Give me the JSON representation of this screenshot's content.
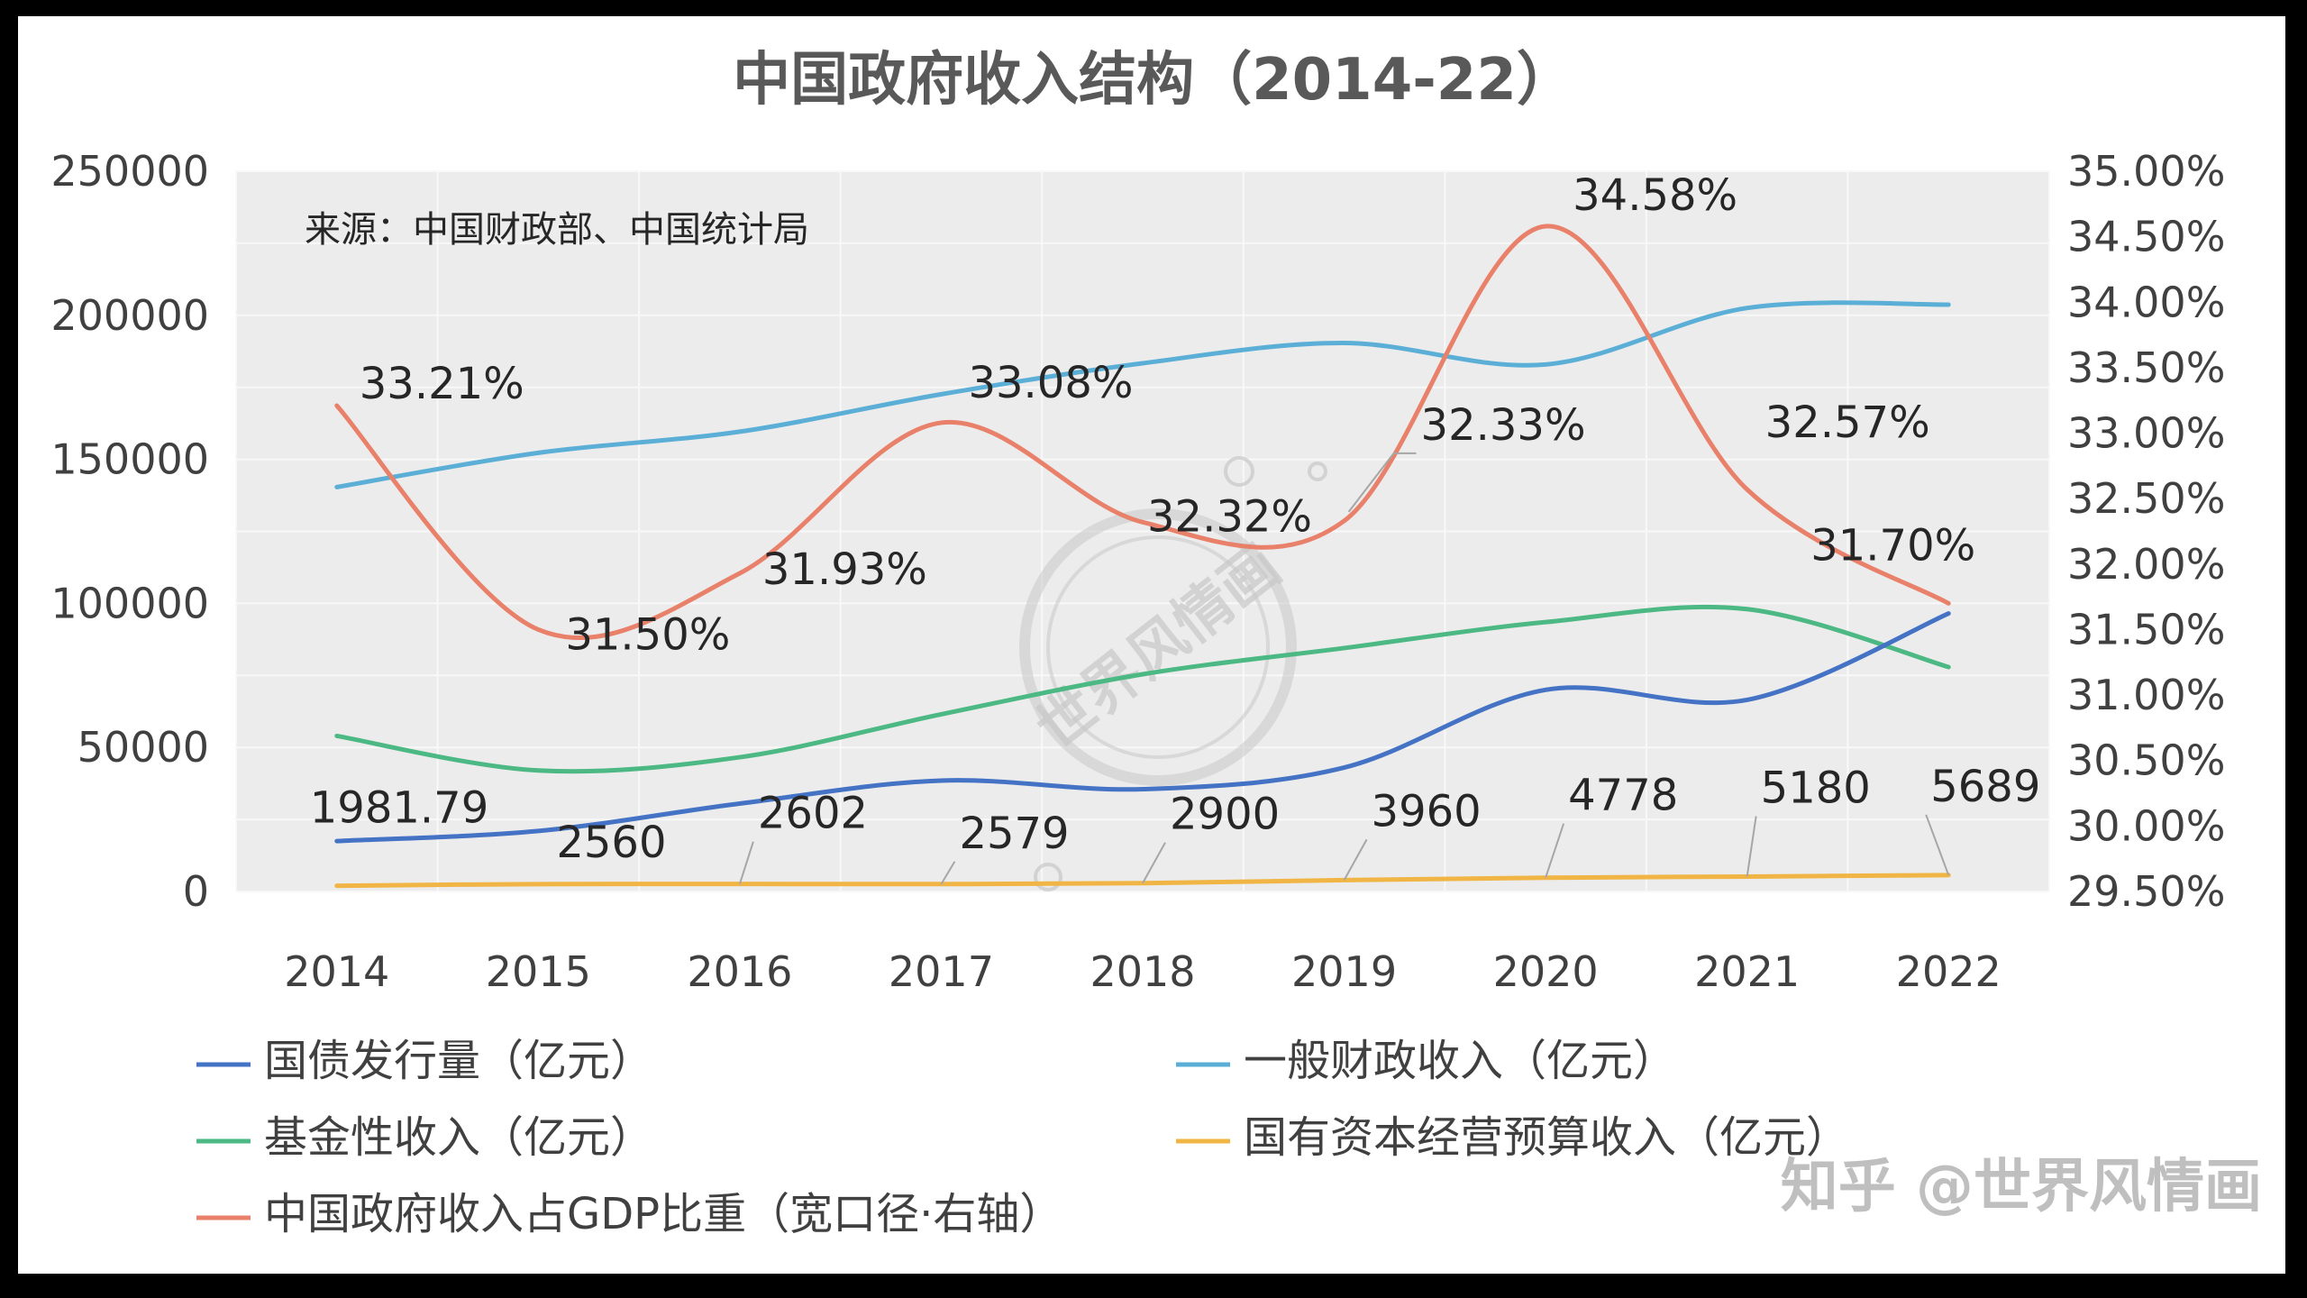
{
  "chart_data": {
    "type": "line",
    "title": "中国政府收入结构（2014-22）",
    "source_note": "来源：中国财政部、中国统计局",
    "categories": [
      "2014",
      "2015",
      "2016",
      "2017",
      "2018",
      "2019",
      "2020",
      "2021",
      "2022"
    ],
    "y_left": {
      "min": 0,
      "max": 250000,
      "ticks": [
        "0",
        "50000",
        "100000",
        "150000",
        "200000",
        "250000"
      ]
    },
    "y_right": {
      "min": 29.5,
      "max": 35.0,
      "ticks": [
        "29.50%",
        "30.00%",
        "30.50%",
        "31.00%",
        "31.50%",
        "32.00%",
        "32.50%",
        "33.00%",
        "33.50%",
        "34.00%",
        "34.50%",
        "35.00%"
      ]
    },
    "grid": true,
    "legend_position": "bottom",
    "series": [
      {
        "key": "debt",
        "name": "国债发行量（亿元）",
        "color": "#4472c4",
        "axis": "left",
        "values": [
          17500,
          21000,
          30500,
          38500,
          35500,
          43000,
          70000,
          66500,
          96500
        ]
      },
      {
        "key": "general",
        "name": "一般财政收入（亿元）",
        "color": "#5bafd6",
        "axis": "left",
        "values": [
          140370,
          152269,
          159605,
          172593,
          183360,
          190390,
          182914,
          202539,
          203703
        ]
      },
      {
        "key": "fund",
        "name": "基金性收入（亿元）",
        "color": "#4cb884",
        "axis": "left",
        "values": [
          54000,
          42000,
          46600,
          61500,
          75400,
          84500,
          93500,
          98000,
          77900
        ]
      },
      {
        "key": "soe",
        "name": "国有资本经营预算收入（亿元）",
        "color": "#f0b544",
        "axis": "left",
        "values": [
          1981.79,
          2560,
          2602,
          2579,
          2900,
          3960,
          4778,
          5180,
          5689
        ],
        "labels": [
          "1981.79",
          "2560",
          "2602",
          "2579",
          "2900",
          "3960",
          "4778",
          "5180",
          "5689"
        ]
      },
      {
        "key": "ratio",
        "name": "中国政府收入占GDP比重（宽口径·右轴）",
        "color": "#e8806a",
        "axis": "right",
        "values": [
          33.21,
          31.5,
          31.93,
          33.08,
          32.32,
          32.33,
          34.58,
          32.57,
          31.7
        ],
        "labels": [
          "33.21%",
          "31.50%",
          "31.93%",
          "33.08%",
          "32.32%",
          "32.33%",
          "34.58%",
          "32.57%",
          "31.70%"
        ]
      }
    ]
  },
  "watermark": {
    "stamp_text": "世界风情画",
    "brand": "知乎 @世界风情画",
    "colors": {
      "stamp": "#c8c8c8",
      "brand": "#bdbdbd"
    }
  },
  "colors": {
    "plot_bg": "#ececec",
    "grid": "#f8f8f8",
    "text": "#404040"
  }
}
